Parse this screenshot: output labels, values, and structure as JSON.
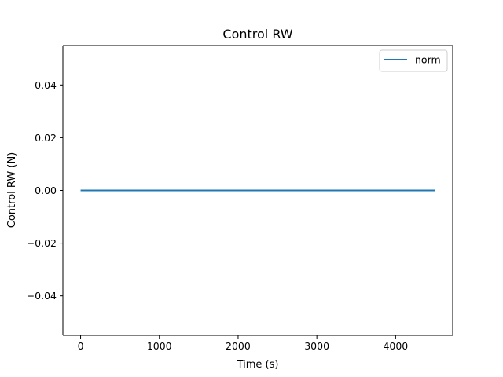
{
  "chart_data": {
    "type": "line",
    "title": "Control RW",
    "xlabel": "Time (s)",
    "ylabel": "Control RW (N)",
    "xlim": [
      -225,
      4725
    ],
    "ylim": [
      -0.055,
      0.055
    ],
    "xticks": [
      0,
      1000,
      2000,
      3000,
      4000
    ],
    "xtick_labels": [
      "0",
      "1000",
      "2000",
      "3000",
      "4000"
    ],
    "yticks": [
      -0.04,
      -0.02,
      0.0,
      0.02,
      0.04
    ],
    "ytick_labels": [
      "−0.04",
      "−0.02",
      "0.00",
      "0.02",
      "0.04"
    ],
    "grid": false,
    "legend_position": "top-right",
    "series": [
      {
        "name": "norm",
        "color": "#1f77b4",
        "x": [
          0,
          4500
        ],
        "y": [
          0.0,
          0.0
        ]
      }
    ]
  }
}
